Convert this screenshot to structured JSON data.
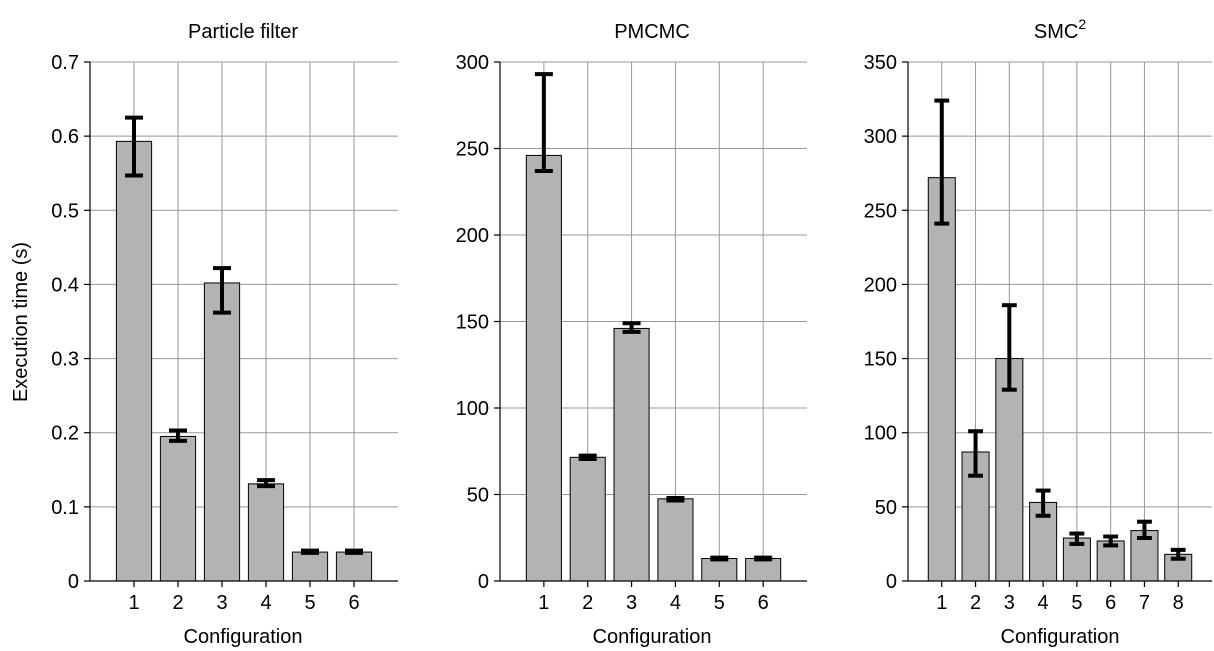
{
  "figure": {
    "ylabel": "Execution time (s)"
  },
  "chart_data": [
    {
      "type": "bar",
      "title": "Particle filter",
      "xlabel": "Configuration",
      "ylabel": "Execution time (s)",
      "categories": [
        "1",
        "2",
        "3",
        "4",
        "5",
        "6"
      ],
      "values": [
        0.593,
        0.195,
        0.402,
        0.131,
        0.039,
        0.039
      ],
      "err_low": [
        0.547,
        0.189,
        0.362,
        0.128,
        0.038,
        0.038
      ],
      "err_high": [
        0.625,
        0.203,
        0.422,
        0.136,
        0.041,
        0.041
      ],
      "yticks": [
        "0",
        "0.1",
        "0.2",
        "0.3",
        "0.4",
        "0.5",
        "0.6",
        "0.7"
      ],
      "ylim": [
        0,
        0.7
      ],
      "grid": true,
      "colors": {
        "bar": "#b3b3b3",
        "grid": "#999999",
        "error_bar": "#000000"
      }
    },
    {
      "type": "bar",
      "title": "PMCMC",
      "xlabel": "Configuration",
      "categories": [
        "1",
        "2",
        "3",
        "4",
        "5",
        "6"
      ],
      "values": [
        246,
        71.5,
        146,
        47.5,
        13,
        13
      ],
      "err_low": [
        237,
        70.5,
        144,
        46.5,
        12.5,
        12.5
      ],
      "err_high": [
        293,
        72.5,
        149,
        48,
        13.5,
        13.5
      ],
      "yticks": [
        "0",
        "50",
        "100",
        "150",
        "200",
        "250",
        "300"
      ],
      "ylim": [
        0,
        300
      ],
      "grid": true,
      "colors": {
        "bar": "#b3b3b3",
        "grid": "#999999",
        "error_bar": "#000000"
      }
    },
    {
      "type": "bar",
      "title": "SMC",
      "title_superscript": "2",
      "xlabel": "Configuration",
      "categories": [
        "1",
        "2",
        "3",
        "4",
        "5",
        "6",
        "7",
        "8"
      ],
      "values": [
        272,
        87,
        150,
        53,
        29,
        27,
        34,
        18
      ],
      "err_low": [
        241,
        71,
        129,
        44,
        25,
        24,
        29,
        15
      ],
      "err_high": [
        324,
        101,
        186,
        61,
        32,
        30,
        40,
        21
      ],
      "yticks": [
        "0",
        "50",
        "100",
        "150",
        "200",
        "250",
        "300",
        "350"
      ],
      "ylim": [
        0,
        350
      ],
      "grid": true,
      "colors": {
        "bar": "#b3b3b3",
        "grid": "#999999",
        "error_bar": "#000000"
      }
    }
  ]
}
